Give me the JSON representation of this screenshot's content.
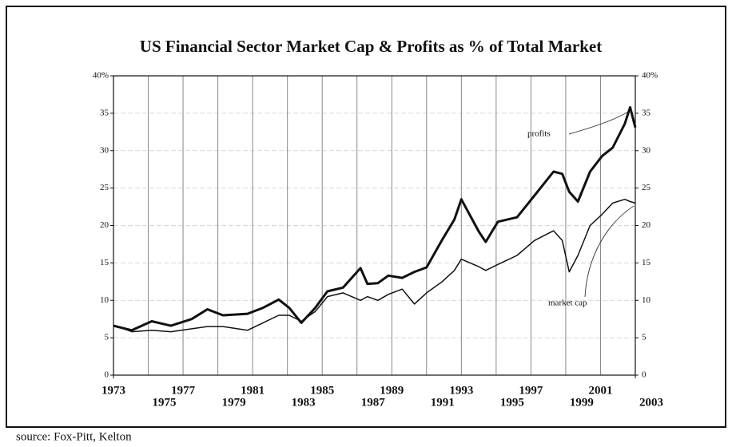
{
  "chart_data": {
    "type": "line",
    "title": "US Financial Sector Market Cap & Profits as % of Total Market",
    "source": "source: Fox-Pitt, Kelton",
    "x": [
      1973,
      1974.05,
      1975.2,
      1976.3,
      1977.5,
      1978.4,
      1979.3,
      1980.7,
      1981.6,
      1982.5,
      1983.1,
      1983.8,
      1984.6,
      1985.3,
      1986.2,
      1987.2,
      1987.6,
      1988.2,
      1988.8,
      1989.6,
      1990.3,
      1991.0,
      1991.9,
      1992.6,
      1993.0,
      1994.0,
      1994.4,
      1995.1,
      1996.2,
      1997.2,
      1998.3,
      1998.8,
      1999.2,
      1999.7,
      2000.4,
      2001.1,
      2001.7,
      2002.4,
      2002.7,
      2003
    ],
    "series": [
      {
        "name": "profits",
        "color": "#111111",
        "width": 3,
        "values": [
          6.6,
          6.0,
          7.2,
          6.6,
          7.5,
          8.8,
          8.0,
          8.2,
          9.0,
          10.1,
          9.0,
          7.0,
          9.0,
          11.2,
          11.7,
          14.3,
          12.2,
          12.3,
          13.3,
          13.0,
          13.8,
          14.4,
          18.1,
          20.8,
          23.5,
          19.2,
          17.8,
          20.5,
          21.1,
          24.0,
          27.2,
          26.9,
          24.5,
          23.2,
          27.2,
          29.3,
          30.4,
          33.6,
          35.8,
          33.1
        ]
      },
      {
        "name": "market cap",
        "color": "#111111",
        "width": 1.5,
        "values": [
          6.7,
          5.8,
          6.0,
          5.8,
          6.2,
          6.5,
          6.5,
          6.0,
          7.0,
          8.0,
          8.0,
          7.2,
          8.5,
          10.5,
          11.0,
          10.0,
          10.5,
          10.0,
          10.8,
          11.5,
          9.5,
          11.0,
          12.5,
          14.0,
          15.5,
          14.5,
          14.0,
          14.8,
          16.0,
          18.0,
          19.3,
          18.0,
          13.8,
          16.0,
          20.0,
          21.5,
          23.0,
          23.5,
          23.2,
          23.0
        ]
      }
    ],
    "annotations": [
      {
        "text": "profits"
      },
      {
        "text": "market cap"
      }
    ],
    "xlim": [
      1973,
      2003
    ],
    "xticks": [
      1973,
      1975,
      1977,
      1979,
      1981,
      1983,
      1985,
      1987,
      1989,
      1991,
      1993,
      1995,
      1997,
      1999,
      2001,
      2003
    ],
    "ylim": [
      0,
      40
    ],
    "yticks": [
      0,
      5,
      10,
      15,
      20,
      25,
      30,
      35,
      {
        "value": 40,
        "label": "40%"
      }
    ],
    "y2lim": [
      0,
      40
    ],
    "y2ticks": [
      0,
      5,
      10,
      15,
      20,
      25,
      30,
      35,
      {
        "value": 40,
        "label": "40%"
      }
    ],
    "grid": true
  }
}
